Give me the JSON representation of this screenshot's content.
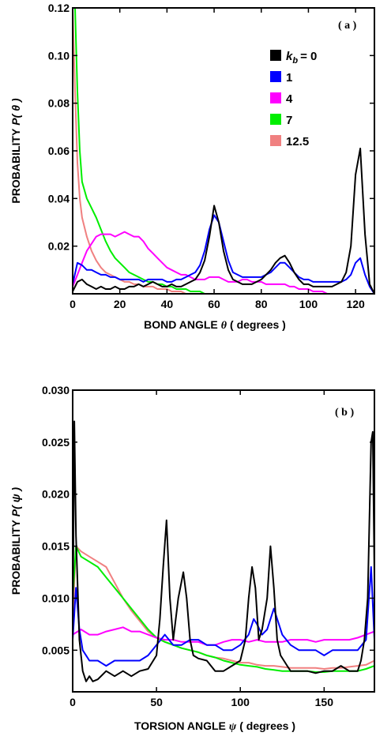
{
  "chart_data": [
    {
      "type": "line",
      "panel_tag": "( a )",
      "xlabel": "BOND ANGLE",
      "xlabel_symbol": "θ",
      "xlabel_unit": "( degrees )",
      "ylabel": "PROBABILITY",
      "ylabel_symbol": "P( θ )",
      "xlim": [
        0,
        128
      ],
      "ylim": [
        0,
        0.12
      ],
      "x_ticks": [
        0,
        20,
        40,
        60,
        80,
        100,
        120
      ],
      "x_tick_labels": [
        "0",
        "20",
        "40",
        "60",
        "80",
        "100",
        "120"
      ],
      "y_ticks": [
        0.02,
        0.04,
        0.06,
        0.08,
        0.1,
        0.12
      ],
      "y_tick_labels": [
        "0.02",
        "0.04",
        "0.06",
        "0.08",
        "0.10",
        "0.12"
      ],
      "legend": "top-right",
      "legend_prefix": "k",
      "legend_sub": "b",
      "series": [
        {
          "name": "= 0",
          "color": "#000000",
          "x": [
            0,
            2,
            4,
            6,
            8,
            10,
            12,
            14,
            16,
            18,
            20,
            22,
            24,
            26,
            28,
            30,
            32,
            34,
            36,
            38,
            40,
            42,
            44,
            46,
            48,
            50,
            52,
            54,
            56,
            58,
            60,
            62,
            64,
            66,
            68,
            70,
            72,
            74,
            76,
            78,
            80,
            82,
            84,
            86,
            88,
            90,
            92,
            94,
            96,
            98,
            100,
            102,
            104,
            106,
            108,
            110,
            112,
            114,
            116,
            118,
            120,
            122,
            124,
            126,
            128
          ],
          "y": [
            0.001,
            0.005,
            0.006,
            0.004,
            0.003,
            0.002,
            0.003,
            0.002,
            0.002,
            0.003,
            0.002,
            0.002,
            0.003,
            0.003,
            0.004,
            0.003,
            0.004,
            0.005,
            0.004,
            0.003,
            0.003,
            0.004,
            0.003,
            0.003,
            0.004,
            0.005,
            0.006,
            0.009,
            0.014,
            0.024,
            0.037,
            0.03,
            0.018,
            0.01,
            0.006,
            0.005,
            0.004,
            0.004,
            0.004,
            0.005,
            0.006,
            0.008,
            0.01,
            0.013,
            0.015,
            0.016,
            0.013,
            0.009,
            0.006,
            0.004,
            0.004,
            0.003,
            0.003,
            0.003,
            0.003,
            0.003,
            0.004,
            0.005,
            0.009,
            0.02,
            0.05,
            0.061,
            0.025,
            0.004,
            0.0
          ]
        },
        {
          "name": "1",
          "color": "#0000ff",
          "x": [
            0,
            2,
            4,
            6,
            8,
            10,
            12,
            14,
            16,
            18,
            20,
            22,
            24,
            26,
            28,
            30,
            32,
            34,
            36,
            38,
            40,
            42,
            44,
            46,
            48,
            50,
            52,
            54,
            56,
            58,
            60,
            62,
            64,
            66,
            68,
            70,
            72,
            74,
            76,
            78,
            80,
            82,
            84,
            86,
            88,
            90,
            92,
            94,
            96,
            98,
            100,
            102,
            104,
            106,
            108,
            110,
            112,
            114,
            116,
            118,
            120,
            122,
            124,
            126,
            128
          ],
          "y": [
            0.004,
            0.013,
            0.012,
            0.01,
            0.01,
            0.009,
            0.008,
            0.008,
            0.007,
            0.007,
            0.006,
            0.006,
            0.006,
            0.006,
            0.006,
            0.005,
            0.006,
            0.006,
            0.006,
            0.006,
            0.005,
            0.005,
            0.006,
            0.006,
            0.007,
            0.008,
            0.009,
            0.012,
            0.018,
            0.027,
            0.033,
            0.03,
            0.022,
            0.014,
            0.009,
            0.008,
            0.007,
            0.007,
            0.007,
            0.007,
            0.007,
            0.008,
            0.009,
            0.011,
            0.013,
            0.013,
            0.011,
            0.009,
            0.007,
            0.006,
            0.006,
            0.005,
            0.005,
            0.005,
            0.005,
            0.005,
            0.005,
            0.005,
            0.006,
            0.008,
            0.013,
            0.015,
            0.008,
            0.003,
            0.0
          ]
        },
        {
          "name": "4",
          "color": "#ff00ff",
          "x": [
            0,
            2,
            4,
            6,
            8,
            10,
            12,
            14,
            16,
            18,
            20,
            22,
            24,
            26,
            28,
            30,
            32,
            34,
            36,
            38,
            40,
            42,
            44,
            46,
            48,
            50,
            52,
            54,
            56,
            58,
            60,
            62,
            64,
            66,
            68,
            70,
            72,
            74,
            76,
            78,
            80,
            82,
            84,
            86,
            88,
            90,
            92,
            94,
            96,
            98,
            100,
            102,
            104,
            106,
            108,
            110
          ],
          "y": [
            0.003,
            0.008,
            0.013,
            0.018,
            0.021,
            0.024,
            0.025,
            0.025,
            0.025,
            0.024,
            0.025,
            0.026,
            0.025,
            0.024,
            0.024,
            0.022,
            0.019,
            0.017,
            0.015,
            0.013,
            0.011,
            0.01,
            0.009,
            0.008,
            0.008,
            0.007,
            0.006,
            0.006,
            0.006,
            0.007,
            0.007,
            0.007,
            0.006,
            0.005,
            0.005,
            0.005,
            0.006,
            0.006,
            0.005,
            0.005,
            0.005,
            0.004,
            0.004,
            0.004,
            0.004,
            0.004,
            0.003,
            0.003,
            0.002,
            0.002,
            0.002,
            0.001,
            0.001,
            0.001,
            0.0,
            0.0
          ]
        },
        {
          "name": "7",
          "color": "#00ee00",
          "x": [
            0,
            1,
            2,
            3,
            4,
            6,
            8,
            10,
            12,
            14,
            16,
            18,
            20,
            22,
            24,
            26,
            28,
            30,
            32,
            34,
            36,
            38,
            40,
            42,
            44,
            46,
            48,
            50,
            52,
            54,
            56
          ],
          "y": [
            0.12,
            0.12,
            0.085,
            0.06,
            0.047,
            0.04,
            0.036,
            0.032,
            0.027,
            0.022,
            0.018,
            0.015,
            0.013,
            0.011,
            0.009,
            0.008,
            0.007,
            0.006,
            0.005,
            0.005,
            0.004,
            0.004,
            0.003,
            0.003,
            0.002,
            0.002,
            0.002,
            0.001,
            0.001,
            0.001,
            0.0
          ]
        },
        {
          "name": "12.5",
          "color": "#f08080",
          "x": [
            0,
            1,
            2,
            3,
            4,
            6,
            8,
            10,
            12,
            14,
            16,
            18,
            20,
            22,
            24,
            26,
            28,
            30,
            32,
            34,
            36,
            38,
            40,
            42,
            44,
            46,
            48,
            50
          ],
          "y": [
            0.12,
            0.085,
            0.055,
            0.04,
            0.032,
            0.024,
            0.018,
            0.014,
            0.011,
            0.009,
            0.008,
            0.007,
            0.006,
            0.005,
            0.005,
            0.004,
            0.004,
            0.003,
            0.003,
            0.003,
            0.002,
            0.002,
            0.002,
            0.001,
            0.001,
            0.001,
            0.0,
            0.0
          ]
        }
      ]
    },
    {
      "type": "line",
      "panel_tag": "( b )",
      "xlabel": "TORSION ANGLE",
      "xlabel_symbol": "ψ",
      "xlabel_unit": "( degrees )",
      "ylabel": "PROBABILITY",
      "ylabel_symbol": "P( ψ )",
      "xlim": [
        0,
        180
      ],
      "ylim": [
        0.001,
        0.03
      ],
      "x_ticks": [
        0,
        50,
        100,
        150
      ],
      "x_tick_labels": [
        "0",
        "50",
        "100",
        "150"
      ],
      "y_ticks": [
        0.005,
        0.01,
        0.015,
        0.02,
        0.025,
        0.03
      ],
      "y_tick_labels": [
        "0.005",
        "0.010",
        "0.015",
        "0.020",
        "0.025",
        "0.030"
      ],
      "series": [
        {
          "name": "= 0",
          "color": "#000000",
          "x": [
            0,
            1,
            2,
            4,
            6,
            8,
            10,
            12,
            15,
            20,
            25,
            30,
            35,
            40,
            45,
            50,
            52,
            54,
            56,
            58,
            60,
            63,
            66,
            68,
            70,
            72,
            75,
            80,
            85,
            90,
            95,
            100,
            103,
            105,
            107,
            109,
            111,
            113,
            116,
            118,
            120,
            122,
            124,
            126,
            128,
            130,
            135,
            140,
            145,
            150,
            155,
            160,
            165,
            170,
            172,
            174,
            176,
            178,
            179,
            180
          ],
          "y": [
            0.006,
            0.027,
            0.016,
            0.006,
            0.003,
            0.002,
            0.0025,
            0.002,
            0.0022,
            0.003,
            0.0025,
            0.003,
            0.0025,
            0.003,
            0.0032,
            0.0045,
            0.008,
            0.013,
            0.0175,
            0.01,
            0.006,
            0.01,
            0.0125,
            0.01,
            0.006,
            0.0045,
            0.0042,
            0.004,
            0.003,
            0.003,
            0.0035,
            0.004,
            0.006,
            0.01,
            0.013,
            0.011,
            0.006,
            0.007,
            0.01,
            0.015,
            0.011,
            0.006,
            0.0045,
            0.004,
            0.0035,
            0.003,
            0.003,
            0.003,
            0.0028,
            0.003,
            0.003,
            0.0035,
            0.003,
            0.003,
            0.004,
            0.006,
            0.01,
            0.025,
            0.026,
            0.012
          ]
        },
        {
          "name": "1",
          "color": "#0000ff",
          "x": [
            0,
            2,
            4,
            6,
            8,
            10,
            15,
            20,
            25,
            30,
            35,
            40,
            45,
            50,
            55,
            60,
            65,
            70,
            75,
            80,
            85,
            90,
            95,
            100,
            105,
            108,
            110,
            113,
            116,
            120,
            125,
            130,
            135,
            140,
            145,
            150,
            155,
            160,
            165,
            170,
            175,
            178,
            180
          ],
          "y": [
            0.006,
            0.011,
            0.007,
            0.005,
            0.0045,
            0.004,
            0.004,
            0.0035,
            0.004,
            0.004,
            0.004,
            0.004,
            0.0045,
            0.0055,
            0.0065,
            0.0055,
            0.0055,
            0.006,
            0.006,
            0.0055,
            0.0055,
            0.005,
            0.005,
            0.0055,
            0.0065,
            0.008,
            0.0075,
            0.0065,
            0.007,
            0.009,
            0.0065,
            0.0055,
            0.005,
            0.005,
            0.005,
            0.0045,
            0.005,
            0.005,
            0.005,
            0.005,
            0.006,
            0.013,
            0.006
          ]
        },
        {
          "name": "4",
          "color": "#ff00ff",
          "x": [
            0,
            5,
            10,
            15,
            20,
            25,
            30,
            35,
            40,
            45,
            50,
            55,
            60,
            65,
            70,
            75,
            80,
            85,
            90,
            95,
            100,
            105,
            110,
            115,
            120,
            125,
            130,
            135,
            140,
            145,
            150,
            155,
            160,
            165,
            170,
            175,
            180
          ],
          "y": [
            0.0065,
            0.007,
            0.0065,
            0.0065,
            0.0068,
            0.007,
            0.0072,
            0.0068,
            0.0068,
            0.0065,
            0.0062,
            0.006,
            0.006,
            0.0058,
            0.0058,
            0.0058,
            0.0055,
            0.0055,
            0.0058,
            0.006,
            0.006,
            0.0058,
            0.006,
            0.0058,
            0.0058,
            0.0058,
            0.006,
            0.006,
            0.006,
            0.0058,
            0.006,
            0.006,
            0.006,
            0.006,
            0.0062,
            0.0065,
            0.0068
          ]
        },
        {
          "name": "7",
          "color": "#00ee00",
          "x": [
            0,
            2,
            5,
            10,
            15,
            20,
            25,
            30,
            35,
            40,
            45,
            50,
            55,
            60,
            65,
            70,
            75,
            80,
            85,
            90,
            95,
            100,
            105,
            110,
            115,
            120,
            125,
            130,
            135,
            140,
            145,
            150,
            155,
            160,
            165,
            170,
            175,
            180
          ],
          "y": [
            0.01,
            0.015,
            0.014,
            0.0135,
            0.013,
            0.012,
            0.011,
            0.01,
            0.009,
            0.008,
            0.007,
            0.0062,
            0.0058,
            0.0055,
            0.0052,
            0.005,
            0.0048,
            0.0045,
            0.0043,
            0.004,
            0.0038,
            0.0036,
            0.0035,
            0.0034,
            0.0032,
            0.0031,
            0.003,
            0.003,
            0.003,
            0.003,
            0.0029,
            0.0029,
            0.003,
            0.003,
            0.003,
            0.003,
            0.0032,
            0.0035
          ]
        },
        {
          "name": "12.5",
          "color": "#f08080",
          "x": [
            0,
            2,
            5,
            10,
            15,
            20,
            25,
            30,
            35,
            40,
            45,
            50,
            55,
            60,
            65,
            70,
            75,
            80,
            85,
            90,
            95,
            100,
            105,
            110,
            115,
            120,
            125,
            130,
            135,
            140,
            145,
            150,
            155,
            160,
            165,
            170,
            175,
            180
          ],
          "y": [
            0.008,
            0.015,
            0.0145,
            0.014,
            0.0135,
            0.013,
            0.0115,
            0.01,
            0.0088,
            0.0078,
            0.0068,
            0.0062,
            0.0058,
            0.0055,
            0.0052,
            0.005,
            0.0048,
            0.0045,
            0.0043,
            0.0042,
            0.004,
            0.0038,
            0.0038,
            0.0036,
            0.0035,
            0.0035,
            0.0034,
            0.0033,
            0.0033,
            0.0033,
            0.0033,
            0.0032,
            0.0033,
            0.0033,
            0.0034,
            0.0035,
            0.0036,
            0.004
          ]
        }
      ]
    }
  ]
}
